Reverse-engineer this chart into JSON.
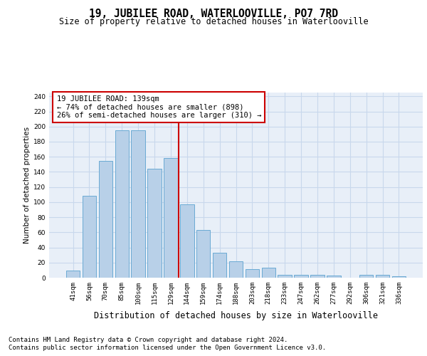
{
  "title": "19, JUBILEE ROAD, WATERLOOVILLE, PO7 7RD",
  "subtitle": "Size of property relative to detached houses in Waterlooville",
  "xlabel": "Distribution of detached houses by size in Waterlooville",
  "ylabel": "Number of detached properties",
  "categories": [
    "41sqm",
    "56sqm",
    "70sqm",
    "85sqm",
    "100sqm",
    "115sqm",
    "129sqm",
    "144sqm",
    "159sqm",
    "174sqm",
    "188sqm",
    "203sqm",
    "218sqm",
    "233sqm",
    "247sqm",
    "262sqm",
    "277sqm",
    "292sqm",
    "306sqm",
    "321sqm",
    "336sqm"
  ],
  "values": [
    9,
    108,
    155,
    195,
    195,
    144,
    158,
    97,
    63,
    33,
    22,
    11,
    13,
    4,
    4,
    4,
    3,
    0,
    4,
    4,
    2
  ],
  "bar_color": "#b8d0e8",
  "bar_edge_color": "#6aaad4",
  "grid_color": "#c8d8ec",
  "background_color": "#e8eff8",
  "annotation_line1": "19 JUBILEE ROAD: 139sqm",
  "annotation_line2": "← 74% of detached houses are smaller (898)",
  "annotation_line3": "26% of semi-detached houses are larger (310) →",
  "annotation_box_facecolor": "#ffffff",
  "annotation_box_edgecolor": "#cc0000",
  "vline_color": "#cc0000",
  "vline_x": 6.5,
  "ylim": [
    0,
    245
  ],
  "yticks": [
    0,
    20,
    40,
    60,
    80,
    100,
    120,
    140,
    160,
    180,
    200,
    220,
    240
  ],
  "footer_line1": "Contains HM Land Registry data © Crown copyright and database right 2024.",
  "footer_line2": "Contains public sector information licensed under the Open Government Licence v3.0.",
  "title_fontsize": 10.5,
  "subtitle_fontsize": 8.5,
  "xlabel_fontsize": 8.5,
  "ylabel_fontsize": 7.5,
  "tick_fontsize": 6.5,
  "annotation_fontsize": 7.5,
  "footer_fontsize": 6.5
}
